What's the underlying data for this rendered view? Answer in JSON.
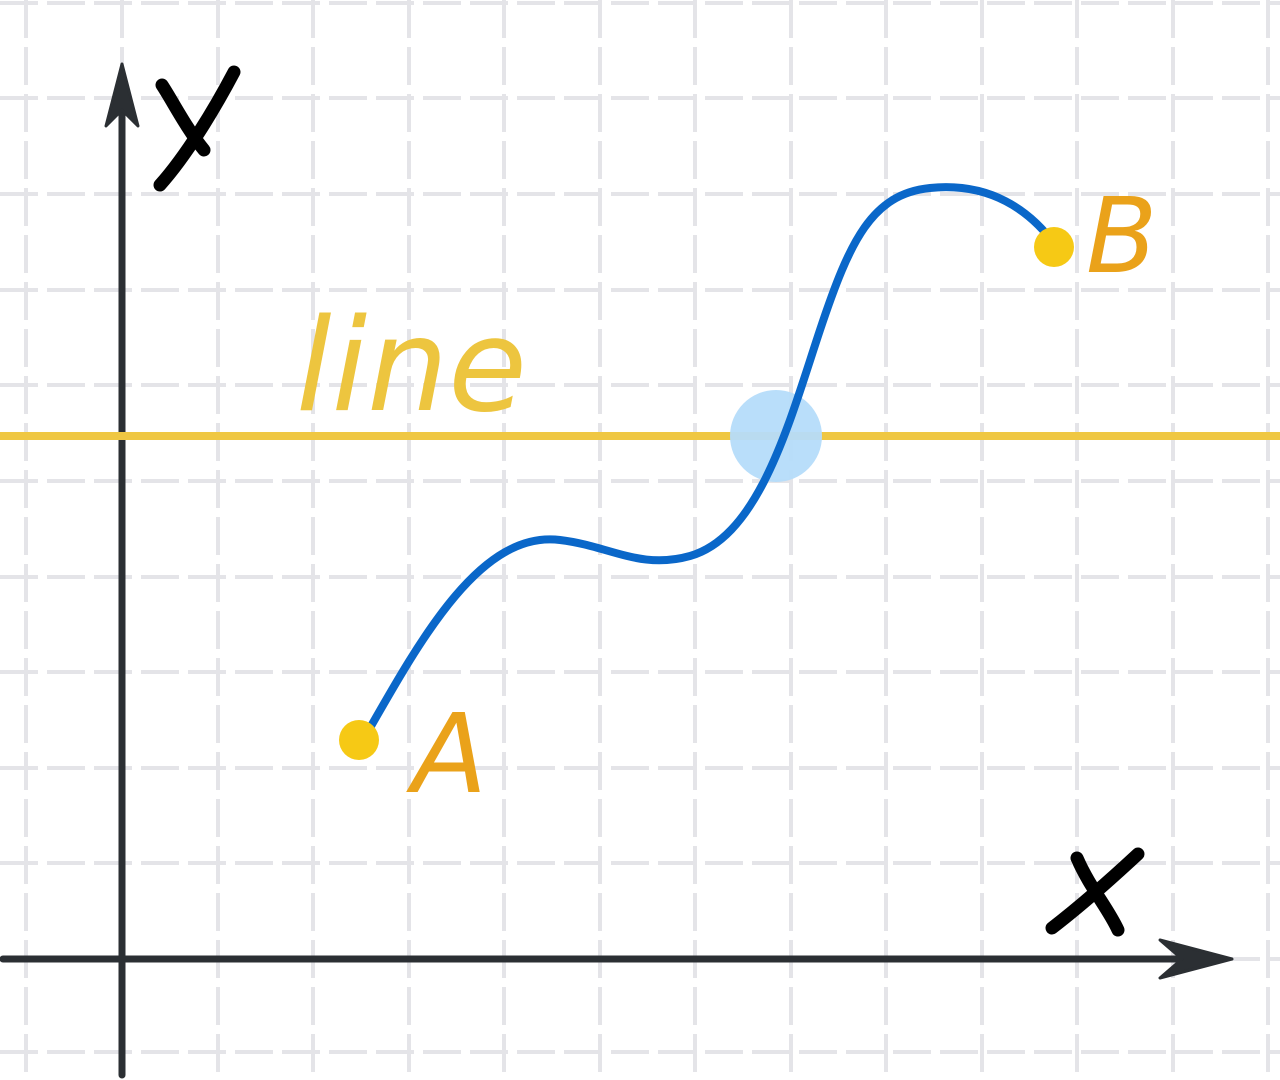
{
  "labels": {
    "y_axis": "y",
    "x_axis": "x",
    "line": "line",
    "point_a": "A",
    "point_b": "B"
  },
  "colors": {
    "grid": "#e4e4e8",
    "axis": "#2b2f33",
    "axis_letters": "#000000",
    "curve": "#0a67c9",
    "line": "#efc743",
    "line_label": "#edc53f",
    "point_fill": "#f6c915",
    "point_label": "#eaa21a",
    "intersection_highlight": "#b5dcfa"
  },
  "icons": {
    "y_axis_arrow": "arrowhead-up-icon",
    "x_axis_arrow": "arrowhead-right-icon"
  }
}
